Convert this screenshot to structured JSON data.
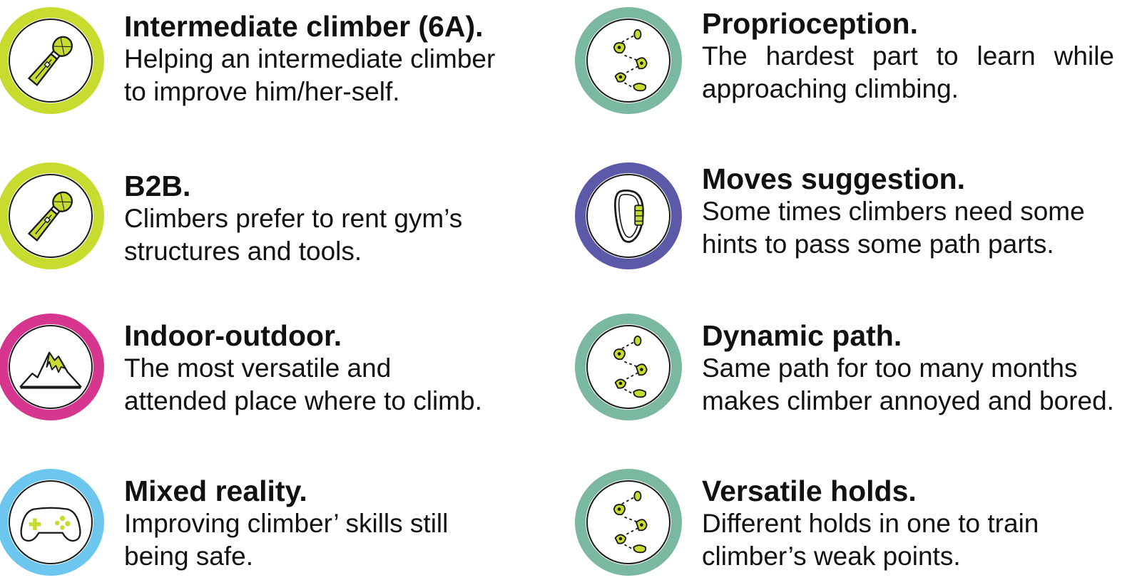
{
  "colors": {
    "lime": "#c8dc30",
    "teal": "#7ab8a0",
    "purple": "#5c59a8",
    "magenta": "#d6368e",
    "sky": "#6cc6ee",
    "hold_fill": "#c8dc30",
    "stroke": "#1a1a1a"
  },
  "left": [
    {
      "icon": "microphone-icon",
      "ring_color": "lime",
      "title": "Intermediate climber (6A).",
      "desc": [
        "Helping an intermediate climber",
        "to improve him/her-self."
      ]
    },
    {
      "icon": "microphone-icon",
      "ring_color": "lime",
      "title": "B2B.",
      "desc": [
        "Climbers prefer to rent gym’s",
        "structures and tools."
      ]
    },
    {
      "icon": "mountain-icon",
      "ring_color": "magenta",
      "title": "Indoor-outdoor.",
      "desc": [
        "The most versatile and",
        "attended place where to climb."
      ]
    },
    {
      "icon": "gamepad-icon",
      "ring_color": "sky",
      "title": "Mixed reality.",
      "desc": [
        "Improving climber’ skills still",
        "being safe."
      ]
    }
  ],
  "right": [
    {
      "icon": "climbing-holds-icon",
      "ring_color": "teal",
      "title": "Proprioception.",
      "desc": [
        "The hardest part to learn while",
        "approaching climbing."
      ]
    },
    {
      "icon": "carabiner-icon",
      "ring_color": "purple",
      "title": "Moves suggestion.",
      "desc": [
        "Some times climbers need some",
        "hints to pass some path parts."
      ]
    },
    {
      "icon": "climbing-holds-icon",
      "ring_color": "teal",
      "title": "Dynamic path.",
      "desc": [
        "Same path for too many months",
        "makes climber annoyed and bored."
      ]
    },
    {
      "icon": "climbing-holds-icon",
      "ring_color": "teal",
      "title": "Versatile holds.",
      "desc": [
        "Different holds in one to train",
        "climber’s weak points."
      ]
    }
  ]
}
